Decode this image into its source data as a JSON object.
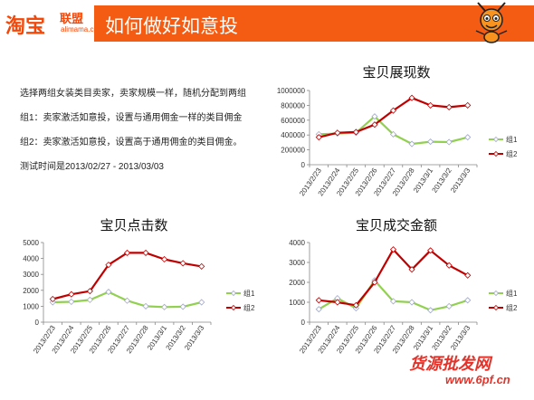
{
  "header": {
    "logo_main": "淘宝",
    "logo_sub": "联盟",
    "logo_url": "alimama.com",
    "title": "如何做好如意投"
  },
  "description": {
    "lines": [
      "选择两组女装类目卖家，卖家规模一样，随机分配到两组",
      "组1：卖家激活如意投，设置与通用佣金一样的类目佣金",
      "组2：卖家激活如意投，设置高于通用佣金的类目佣金。",
      "测试时间是2013/02/27 - 2013/03/03"
    ]
  },
  "watermark": {
    "text": "货源批发网",
    "url": "www.6pf.cn",
    "color": "#e3332a"
  },
  "colors": {
    "brand_orange": "#f45b13",
    "group1": "#92d050",
    "group2": "#c00000"
  },
  "chart_data": [
    {
      "type": "line",
      "title": "宝贝展现数",
      "categories": [
        "2013/2/23",
        "2013/2/24",
        "2013/2/25",
        "2013/2/26",
        "2013/2/27",
        "2013/2/28",
        "2013/3/1",
        "2013/3/2",
        "2013/3/3"
      ],
      "ylim": [
        0,
        1000000
      ],
      "yticks": [
        0,
        200000,
        400000,
        600000,
        800000,
        1000000
      ],
      "legend_position": "right",
      "grid": false,
      "series": [
        {
          "name": "组1",
          "values": [
            410000,
            420000,
            430000,
            650000,
            410000,
            280000,
            310000,
            305000,
            370000
          ]
        },
        {
          "name": "组2",
          "values": [
            370000,
            430000,
            440000,
            540000,
            730000,
            900000,
            800000,
            775000,
            800000
          ]
        }
      ]
    },
    {
      "type": "line",
      "title": "宝贝点击数",
      "categories": [
        "2013/2/23",
        "2013/2/24",
        "2013/2/25",
        "2013/2/26",
        "2013/2/27",
        "2013/2/28",
        "2013/3/1",
        "2013/3/2",
        "2013/3/3"
      ],
      "ylim": [
        0,
        5000
      ],
      "yticks": [
        0,
        1000,
        2000,
        3000,
        4000,
        5000
      ],
      "legend_position": "right",
      "grid": false,
      "series": [
        {
          "name": "组1",
          "values": [
            1250,
            1280,
            1400,
            1900,
            1350,
            1000,
            950,
            970,
            1250
          ]
        },
        {
          "name": "组2",
          "values": [
            1450,
            1750,
            1950,
            3600,
            4350,
            4350,
            3950,
            3700,
            3500
          ]
        }
      ]
    },
    {
      "type": "line",
      "title": "宝贝成交金额",
      "categories": [
        "2013/2/23",
        "2013/2/24",
        "2013/2/25",
        "2013/2/26",
        "2013/2/27",
        "2013/2/28",
        "2013/3/1",
        "2013/3/2",
        "2013/3/3"
      ],
      "ylim": [
        0,
        4000
      ],
      "yticks": [
        0,
        1000,
        2000,
        3000,
        4000
      ],
      "legend_position": "right",
      "grid": false,
      "series": [
        {
          "name": "组1",
          "values": [
            650,
            1200,
            700,
            2100,
            1050,
            1000,
            600,
            800,
            1100
          ]
        },
        {
          "name": "组2",
          "values": [
            1100,
            1000,
            850,
            2000,
            3650,
            2650,
            3600,
            2850,
            2350
          ]
        }
      ]
    }
  ]
}
